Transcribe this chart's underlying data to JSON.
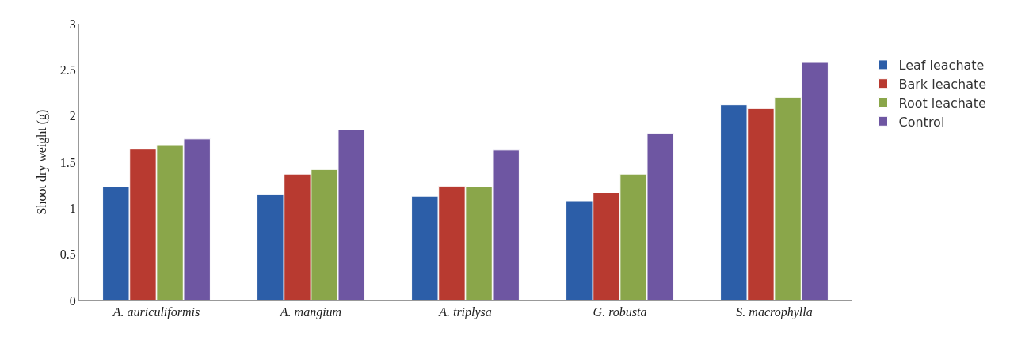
{
  "chart_data": {
    "type": "bar",
    "ylabel": "Shoot dry weight (g)",
    "categories": [
      "A. auriculiformis",
      "A. mangium",
      "A. triplysa",
      "G. robusta",
      "S. macrophylla"
    ],
    "series": [
      {
        "name": "Leaf leachate",
        "color": "#2c5ea8",
        "values": [
          1.23,
          1.15,
          1.13,
          1.08,
          2.12
        ]
      },
      {
        "name": "Bark leachate",
        "color": "#b83a30",
        "values": [
          1.64,
          1.37,
          1.24,
          1.17,
          2.08
        ]
      },
      {
        "name": "Root leachate",
        "color": "#8aa64a",
        "values": [
          1.68,
          1.42,
          1.23,
          1.37,
          2.2
        ]
      },
      {
        "name": "Control",
        "color": "#6e56a2",
        "values": [
          1.75,
          1.85,
          1.63,
          1.81,
          2.58
        ]
      }
    ],
    "ylim": [
      0,
      3
    ],
    "yticks": [
      0,
      0.5,
      1,
      1.5,
      2,
      2.5,
      3
    ],
    "grid": false,
    "legend": "right"
  }
}
